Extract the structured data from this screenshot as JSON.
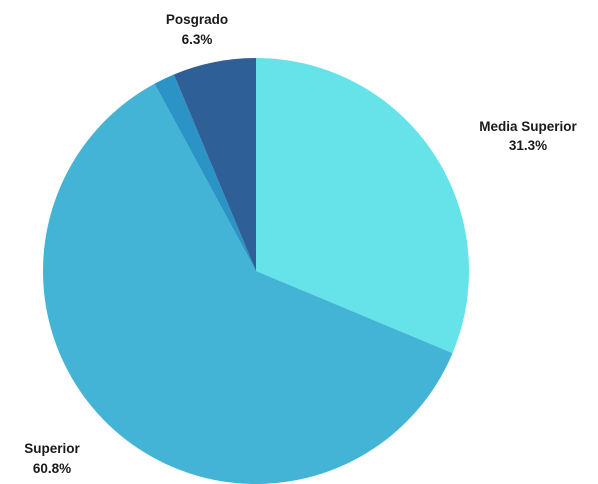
{
  "chart_data": {
    "type": "pie",
    "start_angle_deg": 0,
    "direction": "clockwise",
    "slices": [
      {
        "label": "Media Superior",
        "value": 31.3,
        "value_label": "31.3%",
        "color": "#66e3e8",
        "show_label": true
      },
      {
        "label": "Superior",
        "value": 60.8,
        "value_label": "60.8%",
        "color": "#43b4d6",
        "show_label": true
      },
      {
        "label": "",
        "value": 1.6,
        "value_label": "",
        "color": "#2b93c5",
        "show_label": false
      },
      {
        "label": "Posgrado",
        "value": 6.3,
        "value_label": "6.3%",
        "color": "#2f5f97",
        "show_label": true
      }
    ]
  }
}
